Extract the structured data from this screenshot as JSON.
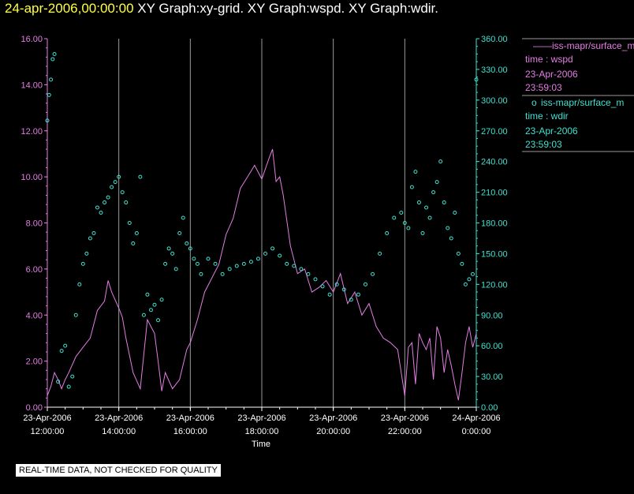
{
  "header": {
    "date": "24-apr-2006,00:00:00",
    "graphs": "XY Graph:xy-grid.  XY Graph:wspd.  XY Graph:wdir."
  },
  "disclaimer": "REAL-TIME DATA, NOT CHECKED FOR QUALITY",
  "colors": {
    "wspd": "#e37ee3",
    "wdir": "#40e0d0",
    "grid": "#9a9a9a",
    "axis": "#ffffff"
  },
  "chart_data": {
    "type": "line",
    "xlabel": "Time",
    "x_ticks": [
      {
        "date": "23-Apr-2006",
        "time": "12:00:00"
      },
      {
        "date": "23-Apr-2006",
        "time": "14:00:00"
      },
      {
        "date": "23-Apr-2006",
        "time": "16:00:00"
      },
      {
        "date": "23-Apr-2006",
        "time": "18:00:00"
      },
      {
        "date": "23-Apr-2006",
        "time": "20:00:00"
      },
      {
        "date": "23-Apr-2006",
        "time": "22:00:00"
      },
      {
        "date": "24-Apr-2006",
        "time": "0:00:00"
      }
    ],
    "x_range_hours": [
      12,
      24
    ],
    "y_left": {
      "ylim": [
        0,
        16
      ],
      "ticks": [
        "0.00",
        "2.00",
        "4.00",
        "6.00",
        "8.00",
        "10.00",
        "12.00",
        "14.00",
        "16.00"
      ]
    },
    "y_right": {
      "ylim": [
        0,
        360
      ],
      "ticks": [
        "0.00",
        "30.00",
        "60.00",
        "90.00",
        "120.00",
        "150.00",
        "180.00",
        "210.00",
        "240.00",
        "270.00",
        "300.00",
        "330.00",
        "360.00"
      ]
    },
    "grid": "vertical",
    "legend_position": "top-right",
    "legend": [
      {
        "marker": "——",
        "source": "iss-mapr/surface_m",
        "var": "time : wspd",
        "date": "23-Apr-2006",
        "time": "23:59:03"
      },
      {
        "marker": "o",
        "source": "iss-mapr/surface_m",
        "var": "time : wdir",
        "date": "23-Apr-2006",
        "time": "23:59:03"
      }
    ],
    "series": [
      {
        "var": "wspd",
        "style": "line",
        "axis": "left",
        "x": [
          12.0,
          12.1,
          12.2,
          12.3,
          12.4,
          12.5,
          12.6,
          12.8,
          13.0,
          13.2,
          13.4,
          13.6,
          13.7,
          13.8,
          14.0,
          14.1,
          14.2,
          14.4,
          14.6,
          14.8,
          15.0,
          15.1,
          15.2,
          15.3,
          15.5,
          15.7,
          15.9,
          16.0,
          16.2,
          16.4,
          16.6,
          16.8,
          17.0,
          17.2,
          17.4,
          17.6,
          17.8,
          18.0,
          18.2,
          18.3,
          18.4,
          18.5,
          18.6,
          18.8,
          19.0,
          19.2,
          19.4,
          19.6,
          19.8,
          20.0,
          20.2,
          20.4,
          20.6,
          20.8,
          21.0,
          21.2,
          21.4,
          21.6,
          21.8,
          21.9,
          22.0,
          22.1,
          22.2,
          22.3,
          22.4,
          22.5,
          22.6,
          22.7,
          22.8,
          22.9,
          23.0,
          23.1,
          23.2,
          23.3,
          23.4,
          23.5,
          23.6,
          23.7,
          23.8,
          23.9,
          24.0
        ],
        "y": [
          0.5,
          0.9,
          1.5,
          1.2,
          0.8,
          1.2,
          1.5,
          2.2,
          2.6,
          3.0,
          4.2,
          4.6,
          5.5,
          5.0,
          4.3,
          3.9,
          3.0,
          1.5,
          0.8,
          3.8,
          3.2,
          2.0,
          0.7,
          1.5,
          0.8,
          1.2,
          2.5,
          2.8,
          3.8,
          5.0,
          5.6,
          6.2,
          7.5,
          8.2,
          9.5,
          10.0,
          10.5,
          9.9,
          10.8,
          11.2,
          9.8,
          10.0,
          9.2,
          7.0,
          5.8,
          6.0,
          5.0,
          5.2,
          5.5,
          5.0,
          5.8,
          4.5,
          5.0,
          4.0,
          4.5,
          3.5,
          3.0,
          2.8,
          2.5,
          1.5,
          0.5,
          2.6,
          2.8,
          1.0,
          3.2,
          2.8,
          2.5,
          3.0,
          1.2,
          3.5,
          3.0,
          1.5,
          2.5,
          1.8,
          1.0,
          0.3,
          1.5,
          2.8,
          3.5,
          2.6,
          3.2
        ]
      },
      {
        "var": "wdir",
        "style": "markers",
        "axis": "right",
        "x": [
          12.0,
          12.05,
          12.1,
          12.15,
          12.2,
          12.3,
          12.4,
          12.5,
          12.6,
          12.7,
          12.8,
          12.9,
          13.0,
          13.1,
          13.2,
          13.3,
          13.4,
          13.5,
          13.6,
          13.7,
          13.8,
          13.9,
          14.0,
          14.1,
          14.2,
          14.3,
          14.4,
          14.5,
          14.6,
          14.7,
          14.8,
          14.9,
          15.0,
          15.1,
          15.2,
          15.3,
          15.4,
          15.5,
          15.6,
          15.7,
          15.8,
          15.9,
          16.0,
          16.1,
          16.2,
          16.3,
          16.5,
          16.7,
          16.9,
          17.1,
          17.3,
          17.5,
          17.7,
          17.9,
          18.1,
          18.3,
          18.5,
          18.7,
          18.9,
          19.1,
          19.3,
          19.5,
          19.7,
          19.9,
          20.1,
          20.3,
          20.5,
          20.7,
          20.9,
          21.1,
          21.3,
          21.5,
          21.7,
          21.9,
          22.0,
          22.1,
          22.2,
          22.3,
          22.4,
          22.5,
          22.6,
          22.7,
          22.8,
          22.9,
          23.0,
          23.1,
          23.2,
          23.3,
          23.4,
          23.5,
          23.6,
          23.7,
          23.8,
          23.9,
          24.0
        ],
        "y": [
          280,
          305,
          320,
          340,
          345,
          25,
          55,
          60,
          20,
          30,
          90,
          120,
          140,
          150,
          165,
          170,
          195,
          190,
          200,
          205,
          215,
          220,
          225,
          210,
          200,
          180,
          160,
          170,
          225,
          90,
          110,
          95,
          100,
          85,
          105,
          140,
          155,
          150,
          135,
          170,
          185,
          160,
          155,
          145,
          140,
          130,
          145,
          140,
          130,
          135,
          138,
          140,
          142,
          145,
          150,
          155,
          148,
          140,
          138,
          135,
          130,
          125,
          118,
          110,
          120,
          115,
          105,
          110,
          120,
          130,
          150,
          170,
          185,
          190,
          180,
          175,
          215,
          230,
          200,
          170,
          195,
          185,
          210,
          220,
          240,
          200,
          175,
          165,
          190,
          150,
          140,
          120,
          125,
          130,
          320
        ]
      }
    ]
  }
}
